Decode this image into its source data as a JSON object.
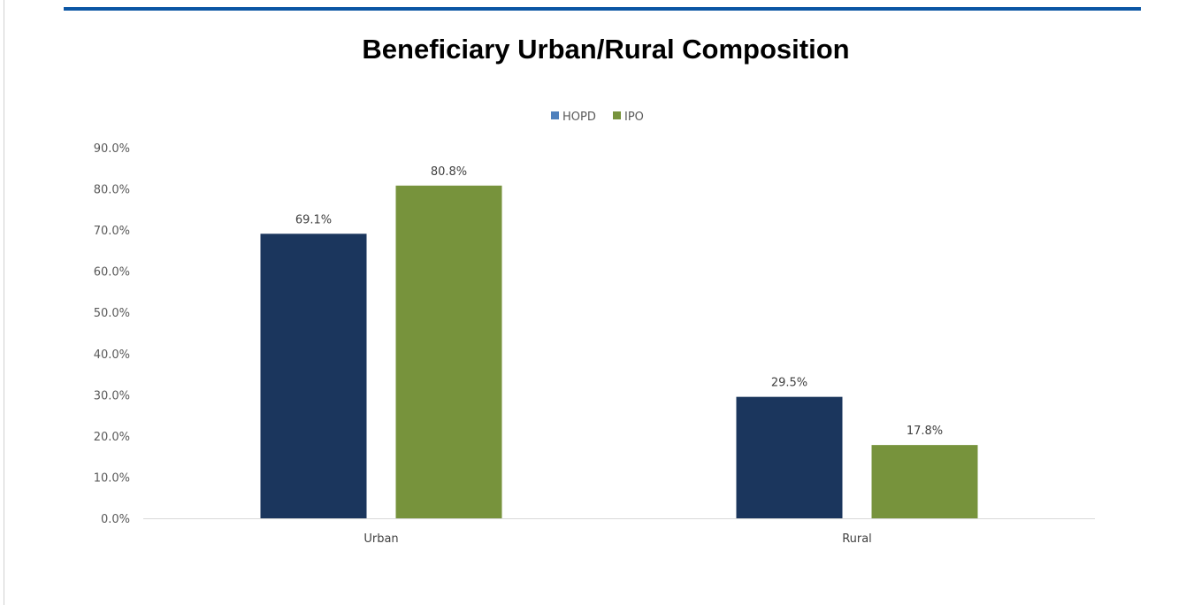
{
  "chart_data": {
    "type": "bar",
    "title": "Beneficiary Urban/Rural Composition",
    "categories": [
      "Urban",
      "Rural"
    ],
    "series": [
      {
        "name": "HOPD",
        "values": [
          69.1,
          29.5
        ],
        "color": "#1b365d",
        "legend_color": "#4f81bd"
      },
      {
        "name": "IPO",
        "values": [
          80.8,
          17.8
        ],
        "color": "#77933c",
        "legend_color": "#77933c"
      }
    ],
    "data_labels": [
      [
        "69.1%",
        "29.5%"
      ],
      [
        "80.8%",
        "17.8%"
      ]
    ],
    "yticks": [
      "0.0%",
      "10.0%",
      "20.0%",
      "30.0%",
      "40.0%",
      "50.0%",
      "60.0%",
      "70.0%",
      "80.0%",
      "90.0%"
    ],
    "ylim": [
      0,
      90
    ],
    "xlabel": "",
    "ylabel": "",
    "grid": false,
    "legend_position": "top"
  }
}
